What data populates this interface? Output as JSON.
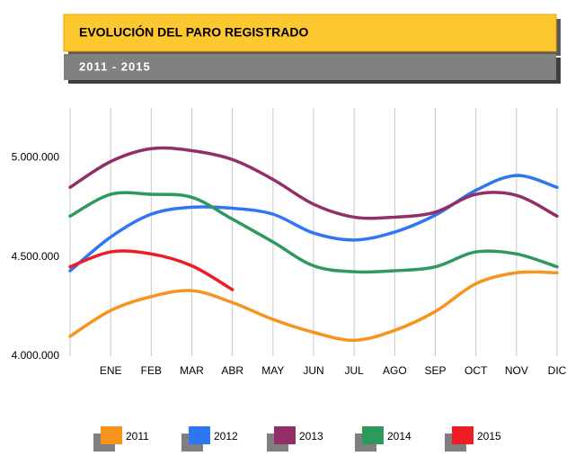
{
  "chart_data": {
    "type": "line",
    "title": "EVOLUCIÓN DEL PARO REGISTRADO",
    "subtitle": "2011 - 2015",
    "categories": [
      null,
      "ENE",
      "FEB",
      "MAR",
      "ABR",
      "MAY",
      "JUN",
      "JUL",
      "AGO",
      "SEP",
      "OCT",
      "NOV",
      "DIC"
    ],
    "series": [
      {
        "name": "2011",
        "color": "#f7941d",
        "values": [
          4100000,
          4230000,
          4300000,
          4330000,
          4270000,
          4185000,
          4120000,
          4080000,
          4130000,
          4225000,
          4365000,
          4420000,
          4420000
        ]
      },
      {
        "name": "2012",
        "color": "#2f77f2",
        "values": [
          4430000,
          4600000,
          4715000,
          4750000,
          4745000,
          4715000,
          4620000,
          4585000,
          4625000,
          4710000,
          4835000,
          4910000,
          4850000
        ]
      },
      {
        "name": "2013",
        "color": "#922f68",
        "values": [
          4850000,
          4980000,
          5045000,
          5035000,
          4990000,
          4890000,
          4765000,
          4700000,
          4700000,
          4725000,
          4815000,
          4810000,
          4705000
        ]
      },
      {
        "name": "2014",
        "color": "#2e995c",
        "values": [
          4705000,
          4815000,
          4815000,
          4800000,
          4690000,
          4575000,
          4455000,
          4425000,
          4430000,
          4450000,
          4525000,
          4515000,
          4450000
        ]
      },
      {
        "name": "2015",
        "color": "#ee1c24",
        "values": [
          4450000,
          4525000,
          4515000,
          4455000,
          4335000,
          null,
          null,
          null,
          null,
          null,
          null,
          null,
          null
        ]
      }
    ],
    "ylim": [
      4000000,
      5250000
    ],
    "yticks": [
      {
        "value": 4000000,
        "label": "4.000.000"
      },
      {
        "value": 4500000,
        "label": "4.500.000"
      },
      {
        "value": 5000000,
        "label": "5.000.000"
      }
    ],
    "grid": true
  }
}
